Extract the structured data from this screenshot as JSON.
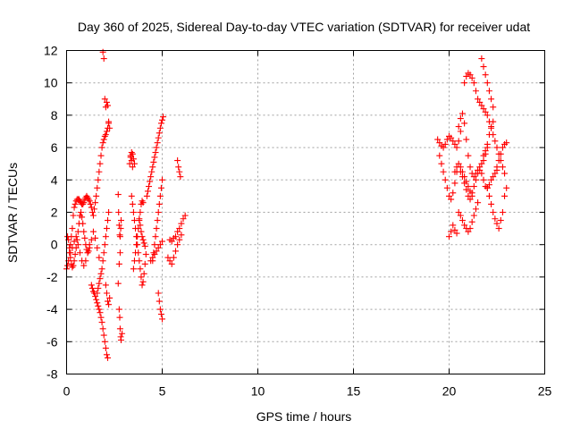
{
  "chart_data": {
    "type": "scatter",
    "title": "Day 360 of 2025, Sidereal Day-to-day VTEC variation (SDTVAR) for receiver udat",
    "xlabel": "GPS time / hours",
    "ylabel": "SDTVAR / TECUs",
    "xlim": [
      0,
      25
    ],
    "ylim": [
      -8,
      12
    ],
    "xticks": [
      "0",
      "5",
      "10",
      "15",
      "20",
      "25"
    ],
    "yticks": [
      "-8",
      "-6",
      "-4",
      "-2",
      "0",
      "2",
      "4",
      "6",
      "8",
      "10",
      "12"
    ],
    "grid": true,
    "legend": "none",
    "marker": "plus",
    "color": "#ff0000",
    "series": [
      {
        "x": [
          0.0,
          0.05,
          0.1,
          0.15,
          0.2,
          0.25,
          0.3,
          0.35,
          0.4,
          0.45,
          0.5,
          0.55,
          0.6,
          0.65,
          0.7,
          0.75,
          0.8,
          0.85,
          0.9,
          0.95,
          1.0,
          1.05,
          1.1,
          1.15,
          1.2,
          1.25,
          1.3,
          1.35,
          1.4,
          1.45,
          1.5,
          1.55,
          1.6,
          1.65,
          1.7,
          1.75,
          1.8,
          1.85,
          1.9,
          1.95,
          2.0,
          2.05,
          2.1,
          2.15,
          2.2,
          0.05,
          0.1,
          0.15,
          0.2,
          0.25,
          0.3,
          0.35,
          0.4,
          0.45,
          0.5,
          0.55,
          0.6,
          0.65,
          0.7,
          0.75,
          0.8,
          0.85,
          0.9,
          0.95,
          1.0,
          1.05,
          1.1,
          1.15,
          1.2,
          0.2,
          0.3,
          0.4,
          0.5,
          0.6,
          0.7,
          0.8,
          0.9,
          1.0,
          1.1,
          1.2,
          1.3,
          1.4,
          1.5,
          1.6,
          1.7,
          1.3,
          1.35,
          1.4,
          1.45,
          1.5,
          1.55,
          1.6,
          1.65,
          1.7,
          1.75,
          1.8,
          1.85,
          1.9,
          1.95,
          2.0,
          2.05,
          2.1,
          2.15,
          1.6,
          1.65,
          1.7,
          1.75,
          1.8,
          1.85,
          1.9,
          1.95,
          2.0,
          2.05,
          2.1,
          2.15,
          2.2,
          1.9,
          1.95,
          2.0,
          2.05,
          2.1,
          2.15,
          2.2,
          2.25,
          2.05,
          2.1,
          2.15,
          2.2,
          2.25,
          2.7,
          2.72,
          2.75,
          2.78,
          2.8,
          2.83,
          2.85,
          2.8,
          2.75,
          2.7,
          2.75,
          2.78,
          2.8,
          2.83,
          2.85,
          2.9,
          3.3,
          3.35,
          3.4,
          3.45,
          3.5,
          3.55,
          3.45,
          3.4,
          3.35,
          3.4,
          3.45,
          3.5,
          3.55,
          3.6,
          3.65,
          3.7,
          3.75,
          3.8,
          3.85,
          3.9,
          3.95,
          4.0,
          4.05,
          4.1,
          4.15,
          3.5,
          3.55,
          3.6,
          3.65,
          3.7,
          3.75,
          3.8,
          3.85,
          3.9,
          3.95,
          4.0,
          3.8,
          3.85,
          3.9,
          3.95,
          4.0,
          4.05,
          4.1,
          4.2,
          4.25,
          4.3,
          4.35,
          4.4,
          4.45,
          4.5,
          4.55,
          4.6,
          4.65,
          4.7,
          4.75,
          4.8,
          4.85,
          4.9,
          4.95,
          5.0,
          5.05,
          4.5,
          4.55,
          4.6,
          4.65,
          4.7,
          4.75,
          4.8,
          4.85,
          4.9,
          4.95,
          5.0,
          4.4,
          4.5,
          4.6,
          4.7,
          4.8,
          4.9,
          5.0,
          4.8,
          4.85,
          4.9,
          4.95,
          5.0,
          5.4,
          5.5,
          5.6,
          5.7,
          5.8,
          5.9,
          6.0,
          6.1,
          6.2,
          5.3,
          5.4,
          5.5,
          5.6,
          5.7,
          5.8,
          5.9,
          6.0,
          5.8,
          5.85,
          5.9,
          5.95,
          19.4,
          19.5,
          19.6,
          19.7,
          19.8,
          19.9,
          20.0,
          20.1,
          20.2,
          20.3,
          20.4,
          20.5,
          20.6,
          19.5,
          19.6,
          19.7,
          19.8,
          19.9,
          20.0,
          20.1,
          20.2,
          20.3,
          20.4,
          20.5,
          20.6,
          20.7,
          20.8,
          20.9,
          21.0,
          21.1,
          21.2,
          21.3,
          21.4,
          21.5,
          21.6,
          21.7,
          21.8,
          21.9,
          22.0,
          22.1,
          22.2,
          22.3,
          20.8,
          20.9,
          21.0,
          21.1,
          21.2,
          21.3,
          21.4,
          20.6,
          20.7,
          20.8,
          20.9,
          21.0,
          21.1,
          21.2,
          21.3,
          21.4,
          21.5,
          21.6,
          21.7,
          21.8,
          21.9,
          22.0,
          22.1,
          22.2,
          22.3,
          22.4,
          22.5,
          20.5,
          20.6,
          20.7,
          20.8,
          20.9,
          21.0,
          21.1,
          21.2,
          21.3,
          21.4,
          21.5,
          21.5,
          21.6,
          21.7,
          21.8,
          21.9,
          22.0,
          22.1,
          22.2,
          22.3,
          22.4,
          22.5,
          22.6,
          22.7,
          22.8,
          22.9,
          20.3,
          20.4,
          20.5,
          20.6,
          20.7,
          20.8,
          20.9,
          21.0,
          21.1,
          21.2,
          21.7,
          21.8,
          21.9,
          22.0,
          22.1,
          22.2,
          22.3,
          22.0,
          22.1,
          22.2,
          22.3,
          22.4,
          22.5,
          22.6,
          22.7,
          22.8,
          22.9,
          23.0,
          22.5,
          22.6,
          22.7,
          22.8,
          22.9,
          23.0,
          21.8,
          21.9,
          22.0,
          20.0,
          20.1,
          20.2,
          20.3,
          20.4
        ],
        "y": [
          -1.5,
          -1.3,
          -1.0,
          -0.5,
          0.0,
          0.5,
          1.0,
          1.8,
          2.3,
          2.5,
          2.7,
          2.8,
          2.8,
          2.8,
          2.7,
          2.6,
          2.5,
          2.5,
          2.6,
          2.8,
          2.9,
          3.0,
          2.9,
          2.8,
          2.7,
          2.5,
          2.3,
          2.0,
          1.8,
          2.2,
          2.6,
          3.0,
          3.5,
          4.0,
          4.5,
          5.0,
          5.5,
          6.0,
          6.3,
          6.5,
          6.7,
          6.8,
          7.0,
          7.2,
          7.5,
          0.5,
          0.3,
          -0.2,
          -0.8,
          -1.2,
          -1.4,
          -1.3,
          -1.0,
          -0.6,
          -0.2,
          0.3,
          0.8,
          1.3,
          1.8,
          2.0,
          1.7,
          1.3,
          0.8,
          0.4,
          0.0,
          -0.3,
          -0.5,
          -0.4,
          -0.2,
          -0.5,
          -0.2,
          0.2,
          0.5,
          0.0,
          -0.5,
          -1.0,
          -1.3,
          -1.0,
          -0.5,
          0.0,
          0.3,
          0.8,
          0.4,
          -0.2,
          -0.8,
          -2.5,
          -2.7,
          -2.9,
          -3.0,
          -3.2,
          -3.4,
          -3.6,
          -3.8,
          -4.0,
          -4.2,
          -4.5,
          -4.8,
          -5.2,
          -5.6,
          -6.0,
          -6.4,
          -6.8,
          -7.0,
          -3.0,
          -2.7,
          -2.4,
          -2.1,
          -1.8,
          -1.5,
          -1.0,
          -0.5,
          0.0,
          0.5,
          1.0,
          1.5,
          2.0,
          11.9,
          11.5,
          9.0,
          8.5,
          8.8,
          8.6,
          7.6,
          7.2,
          -2.5,
          -3.0,
          -3.5,
          -3.7,
          -3.3,
          3.1,
          2.0,
          1.2,
          0.6,
          0.5,
          1.0,
          1.5,
          -0.5,
          -1.2,
          -2.4,
          -4.0,
          -4.5,
          -5.2,
          -5.7,
          -5.9,
          -5.5,
          5.0,
          5.5,
          5.7,
          5.6,
          5.3,
          5.0,
          4.8,
          5.2,
          5.4,
          3.0,
          2.5,
          2.0,
          1.5,
          1.0,
          0.5,
          0.0,
          -0.5,
          -1.0,
          -1.5,
          -2.0,
          -2.5,
          -2.3,
          -1.8,
          -1.2,
          -0.6,
          -1.5,
          -1.0,
          -0.5,
          0.0,
          0.5,
          1.0,
          1.5,
          2.0,
          2.5,
          2.7,
          2.6,
          1.6,
          1.2,
          0.8,
          0.5,
          0.3,
          0.1,
          -0.1,
          3.0,
          3.3,
          3.6,
          3.9,
          4.2,
          4.5,
          4.8,
          5.1,
          5.4,
          5.7,
          6.0,
          6.3,
          6.6,
          6.9,
          7.2,
          7.5,
          7.7,
          7.9,
          -1.0,
          -0.5,
          0.0,
          0.5,
          1.0,
          1.5,
          2.0,
          2.5,
          3.0,
          3.5,
          4.0,
          -1.0,
          -0.8,
          -0.6,
          -0.4,
          -0.2,
          0.0,
          0.2,
          -3.0,
          -3.5,
          -4.0,
          -4.3,
          -4.6,
          0.3,
          0.2,
          0.4,
          0.5,
          0.8,
          1.0,
          1.3,
          1.6,
          1.8,
          -0.8,
          -1.0,
          -1.2,
          -0.8,
          -0.4,
          0.0,
          0.3,
          0.6,
          5.2,
          4.8,
          4.5,
          4.2,
          6.5,
          6.3,
          6.1,
          6.0,
          6.2,
          6.5,
          6.7,
          6.6,
          6.4,
          6.2,
          6.0,
          6.4,
          7.0,
          5.5,
          5.0,
          4.5,
          4.0,
          3.5,
          3.0,
          2.8,
          3.2,
          3.8,
          4.5,
          7.3,
          7.8,
          8.1,
          7.5,
          6.5,
          5.5,
          4.8,
          4.4,
          4.2,
          4.4,
          4.6,
          4.8,
          5.0,
          5.2,
          5.6,
          6.2,
          6.8,
          7.3,
          7.6,
          10.0,
          10.4,
          10.6,
          10.5,
          10.3,
          10.0,
          9.5,
          4.5,
          4.2,
          3.8,
          3.4,
          3.0,
          2.8,
          3.2,
          3.6,
          4.0,
          4.4,
          4.6,
          4.4,
          4.0,
          3.6,
          3.5,
          3.7,
          4.0,
          4.2,
          4.4,
          4.6,
          2.0,
          1.8,
          1.5,
          1.2,
          1.0,
          0.8,
          1.0,
          1.4,
          1.8,
          2.2,
          2.6,
          9.0,
          8.8,
          8.6,
          8.4,
          8.2,
          8.0,
          7.6,
          7.2,
          6.8,
          6.4,
          6.0,
          5.6,
          5.2,
          4.8,
          4.4,
          4.5,
          4.8,
          5.0,
          4.8,
          4.5,
          4.2,
          3.9,
          3.6,
          3.3,
          3.0,
          11.5,
          11.0,
          10.5,
          10.0,
          9.5,
          9.0,
          8.5,
          3.5,
          3.0,
          2.5,
          2.0,
          1.6,
          1.3,
          1.0,
          1.5,
          2.0,
          3.0,
          3.5,
          4.8,
          5.2,
          5.6,
          6.0,
          6.2,
          6.3,
          5.5,
          5.8,
          6.0,
          0.5,
          0.8,
          1.2,
          0.9,
          0.7
        ]
      }
    ]
  }
}
